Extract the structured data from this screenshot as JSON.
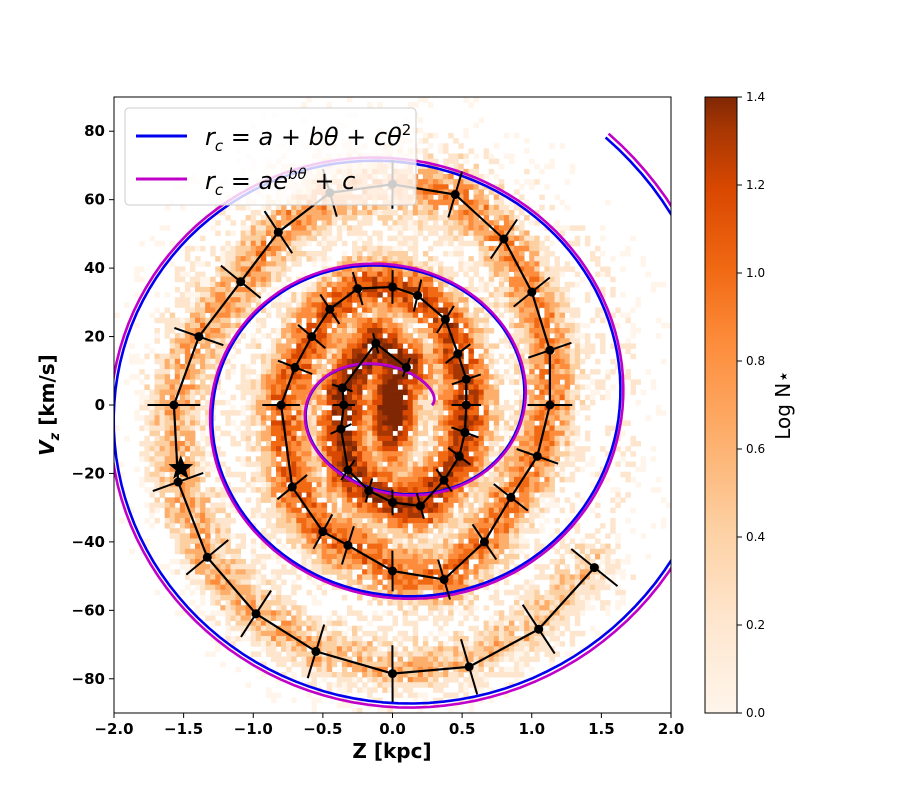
{
  "chart_data": {
    "type": "scatter",
    "subtype": "2d-histogram-with-spiral-fits",
    "xlabel": "Z [kpc]",
    "ylabel": "V_z [km/s]",
    "xlim": [
      -2.0,
      2.0
    ],
    "ylim": [
      -90,
      90
    ],
    "xticks": [
      "−2.0",
      "−1.5",
      "−1.0",
      "−0.5",
      "0.0",
      "0.5",
      "1.0",
      "1.5",
      "2.0"
    ],
    "xtick_values": [
      -2.0,
      -1.5,
      -1.0,
      -0.5,
      0.0,
      0.5,
      1.0,
      1.5,
      2.0
    ],
    "yticks": [
      "−80",
      "−60",
      "−40",
      "−20",
      "0",
      "20",
      "40",
      "60",
      "80"
    ],
    "ytick_values": [
      -80,
      -60,
      -40,
      -20,
      0,
      20,
      40,
      60,
      80
    ],
    "grid": false,
    "legend": {
      "placement": "top-left",
      "entries": [
        {
          "label": "r_c = a + bθ + cθ²",
          "color": "#0000ee"
        },
        {
          "label": "r_c = a e^{bθ} + c",
          "color": "#c000c8"
        }
      ]
    },
    "colorbar": {
      "label": "Log N⋆",
      "min": 0.0,
      "max": 1.4,
      "ticks": [
        "0.0",
        "0.2",
        "0.4",
        "0.6",
        "0.8",
        "1.0",
        "1.2",
        "1.4"
      ],
      "tick_values": [
        0.0,
        0.2,
        0.4,
        0.6,
        0.8,
        1.0,
        1.2,
        1.4
      ],
      "colormap": "Oranges"
    },
    "series": [
      {
        "name": "traced spiral points",
        "color": "#000000",
        "points": [
          [
            0.1,
            11
          ],
          [
            -0.12,
            18
          ],
          [
            -0.36,
            5
          ],
          [
            -0.35,
            0
          ],
          [
            -0.37,
            -7
          ],
          [
            -0.32,
            -19
          ],
          [
            -0.17,
            -25
          ],
          [
            0.0,
            -28.5
          ],
          [
            0.2,
            -29.5
          ],
          [
            0.37,
            -22
          ],
          [
            0.48,
            -15
          ],
          [
            0.52,
            -8
          ],
          [
            0.53,
            0
          ],
          [
            0.53,
            7.5
          ],
          [
            0.47,
            15
          ],
          [
            0.38,
            25
          ],
          [
            0.18,
            32
          ],
          [
            0.0,
            34.5
          ],
          [
            -0.25,
            34
          ],
          [
            -0.45,
            28
          ],
          [
            -0.58,
            20
          ],
          [
            -0.7,
            11
          ],
          [
            -0.8,
            0
          ],
          [
            -0.72,
            -24
          ],
          [
            -0.5,
            -37
          ],
          [
            -0.32,
            -41
          ],
          [
            0.0,
            -48.5
          ],
          [
            0.37,
            -51
          ],
          [
            0.66,
            -40
          ],
          [
            0.85,
            -27
          ],
          [
            1.04,
            -15
          ],
          [
            1.13,
            0
          ],
          [
            1.13,
            16
          ],
          [
            1.0,
            33
          ],
          [
            0.8,
            48.5
          ],
          [
            0.45,
            61.5
          ],
          [
            0.0,
            64.5
          ],
          [
            -0.45,
            62
          ],
          [
            -0.82,
            50.5
          ],
          [
            -1.09,
            36
          ],
          [
            -1.39,
            20
          ],
          [
            -1.57,
            0
          ],
          [
            -1.54,
            -22.5
          ],
          [
            -1.33,
            -44.5
          ],
          [
            -0.98,
            -61
          ],
          [
            -0.55,
            -72
          ],
          [
            0.0,
            -78.5
          ],
          [
            0.55,
            -76.5
          ],
          [
            1.05,
            -65.5
          ],
          [
            1.45,
            -47.5
          ]
        ]
      },
      {
        "name": "quadratic spiral fit",
        "color": "#0000ee",
        "model": "r_c = a + bθ + cθ²"
      },
      {
        "name": "exponential spiral fit",
        "color": "#c000c8",
        "model": "r_c = a e^{bθ} + c"
      }
    ],
    "star_marker": {
      "x": -1.52,
      "y": -18.5
    }
  }
}
